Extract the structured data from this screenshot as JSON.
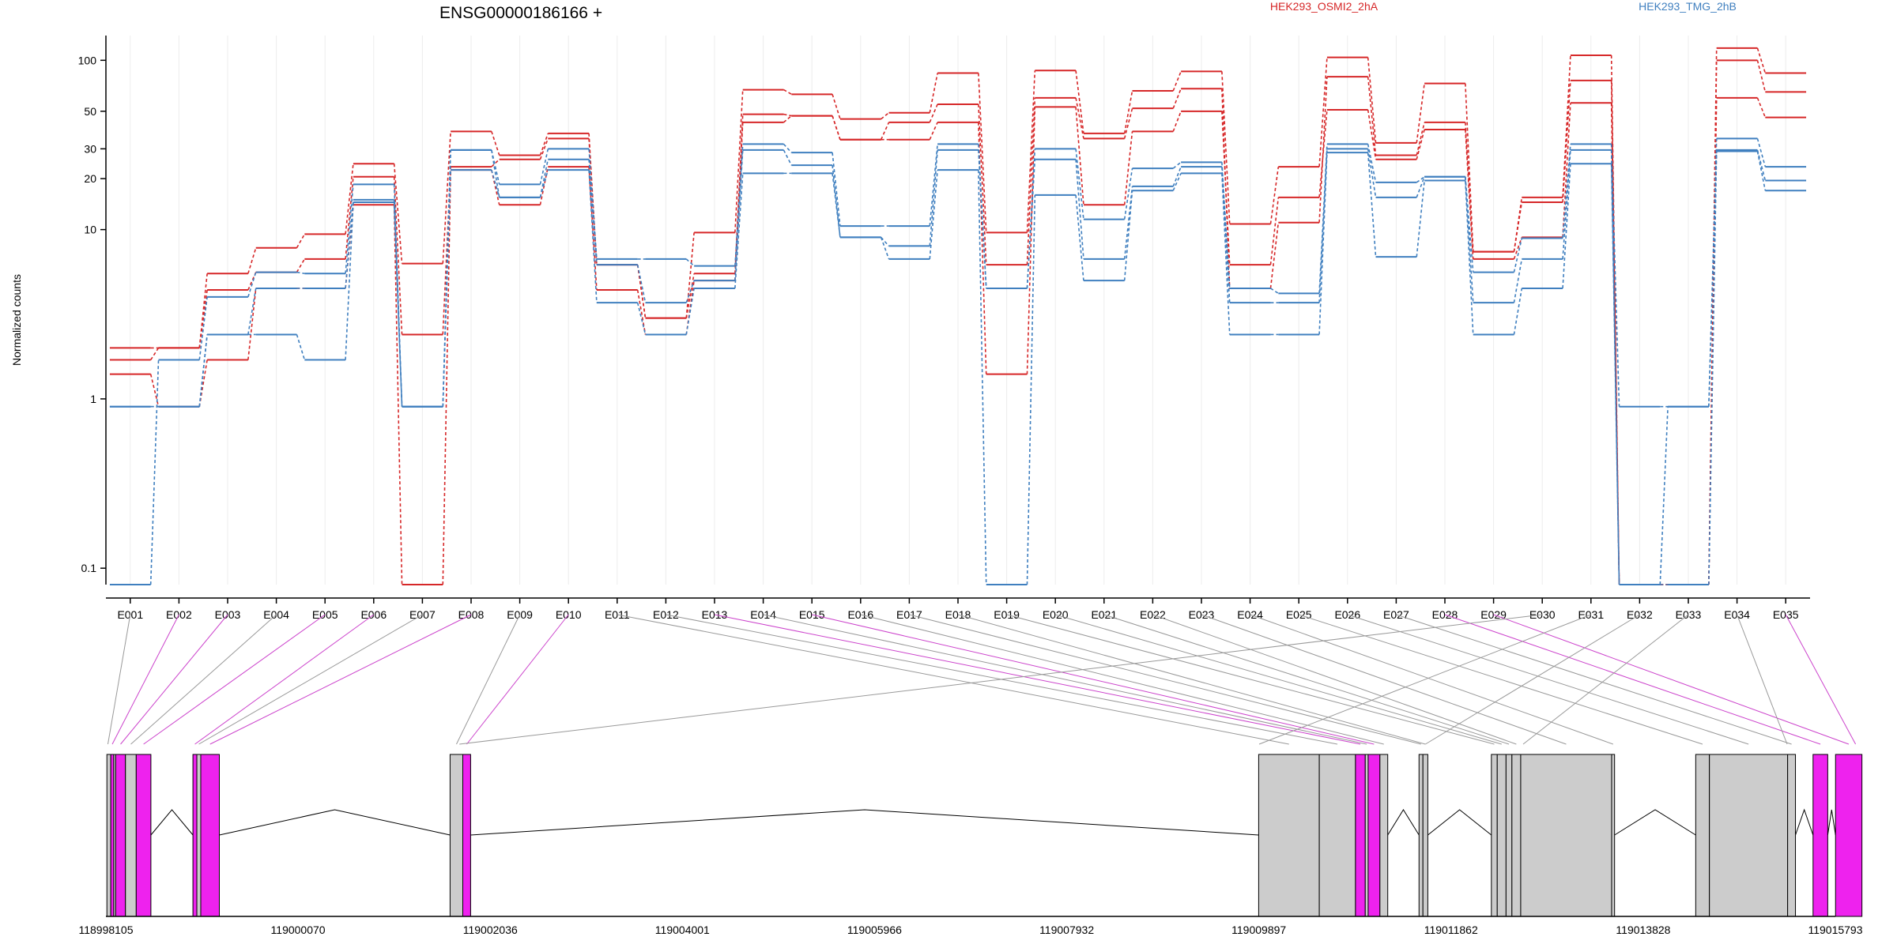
{
  "chart_data": {
    "type": "line",
    "title": "ENSG00000186166 +",
    "ylabel": "Normalized counts",
    "yscale": "log",
    "ylim": [
      0.08,
      140
    ],
    "yticks": [
      "100",
      "50",
      "30",
      "20",
      "10",
      "1",
      "0.1"
    ],
    "yticks_values": [
      100,
      50,
      30,
      20,
      10,
      1,
      0.1
    ],
    "grid": "vertical",
    "legend_position": "top-right",
    "exons": [
      "E001",
      "E002",
      "E003",
      "E004",
      "E005",
      "E006",
      "E007",
      "E008",
      "E009",
      "E010",
      "E011",
      "E012",
      "E013",
      "E014",
      "E015",
      "E016",
      "E017",
      "E018",
      "E019",
      "E020",
      "E021",
      "E022",
      "E023",
      "E024",
      "E025",
      "E026",
      "E027",
      "E028",
      "E029",
      "E030",
      "E031",
      "E032",
      "E033",
      "E034",
      "E035"
    ],
    "groups": [
      {
        "label": "HEK293_OSMI2_2hA",
        "color": "#d62728"
      },
      {
        "label": "HEK293_TMG_2hB",
        "color": "#3f7fbf"
      }
    ],
    "series": [
      {
        "group": 0,
        "values": [
          2.0,
          2.0,
          5.5,
          7.8,
          9.4,
          24.5,
          6.3,
          38.0,
          27.5,
          37.0,
          6.2,
          3.0,
          9.6,
          67.0,
          63.0,
          45.0,
          49.0,
          84.0,
          9.6,
          87.0,
          37.0,
          66.0,
          86.0,
          10.8,
          23.5,
          104.0,
          32.5,
          73.0,
          7.4,
          15.5,
          107.0,
          0.07,
          0.07,
          118.0,
          84.0
        ]
      },
      {
        "group": 0,
        "values": [
          1.7,
          2.0,
          4.4,
          5.6,
          6.7,
          20.5,
          2.4,
          23.5,
          26.0,
          34.5,
          6.2,
          3.0,
          5.5,
          48.0,
          47.0,
          34.0,
          43.0,
          55.0,
          6.2,
          60.0,
          34.5,
          52.0,
          68.0,
          4.5,
          11.0,
          80.0,
          27.5,
          43.0,
          7.4,
          14.5,
          76.0,
          0.07,
          0.07,
          100.0,
          65.0
        ]
      },
      {
        "group": 0,
        "values": [
          1.4,
          0.9,
          1.7,
          4.5,
          4.5,
          14.0,
          0.07,
          22.5,
          14.0,
          23.5,
          4.4,
          2.4,
          5.0,
          43.0,
          47.0,
          34.0,
          34.0,
          43.0,
          1.4,
          53.0,
          14.0,
          38.0,
          50.0,
          6.2,
          15.5,
          51.0,
          26.0,
          39.0,
          6.7,
          9.0,
          56.0,
          0.07,
          0.07,
          60.0,
          46.0
        ]
      },
      {
        "group": 1,
        "values": [
          0.07,
          1.7,
          4.0,
          5.6,
          5.5,
          18.5,
          0.9,
          29.5,
          18.5,
          30.0,
          6.7,
          6.7,
          6.1,
          32.0,
          28.5,
          10.5,
          10.5,
          32.0,
          4.5,
          30.0,
          11.5,
          23.0,
          25.0,
          4.5,
          4.2,
          32.0,
          19.0,
          20.5,
          5.6,
          8.9,
          32.0,
          0.9,
          0.9,
          34.5,
          23.5
        ]
      },
      {
        "group": 1,
        "values": [
          0.9,
          0.9,
          2.4,
          4.5,
          4.5,
          15.0,
          0.9,
          29.5,
          15.5,
          26.0,
          6.2,
          3.7,
          5.0,
          29.5,
          24.0,
          9.0,
          8.0,
          29.5,
          4.5,
          26.0,
          6.7,
          18.0,
          23.5,
          3.7,
          3.7,
          30.0,
          15.5,
          20.5,
          3.7,
          6.7,
          29.5,
          0.07,
          0.9,
          29.5,
          19.5
        ]
      },
      {
        "group": 1,
        "values": [
          0.9,
          0.9,
          2.4,
          2.4,
          1.7,
          14.5,
          0.9,
          22.5,
          15.5,
          22.5,
          3.7,
          2.4,
          4.5,
          21.5,
          21.5,
          9.0,
          6.7,
          22.5,
          0.07,
          16.0,
          5.0,
          17.0,
          21.5,
          2.4,
          2.4,
          28.5,
          6.9,
          19.5,
          2.4,
          4.5,
          24.5,
          0.07,
          0.07,
          29.0,
          17.0
        ]
      }
    ],
    "genomic_axis": {
      "tick_labels": [
        "118998105",
        "119000070",
        "119002036",
        "119004001",
        "119005966",
        "119007932",
        "119009897",
        "119011862",
        "119013828",
        "119015793"
      ],
      "tick_values": [
        118998105,
        119000070,
        119002036,
        119004001,
        119005966,
        119007932,
        119009897,
        119011862,
        119013828,
        119015793
      ]
    },
    "gene_model": {
      "exons": [
        {
          "start": 118998115,
          "end": 118998155,
          "highlight": false
        },
        {
          "start": 118998155,
          "end": 118998185,
          "highlight": true
        },
        {
          "start": 118998185,
          "end": 118998205,
          "highlight": false
        },
        {
          "start": 118998205,
          "end": 118998305,
          "highlight": true
        },
        {
          "start": 118998305,
          "end": 118998415,
          "highlight": false
        },
        {
          "start": 118998415,
          "end": 118998565,
          "highlight": true
        },
        {
          "start": 118998995,
          "end": 118999035,
          "highlight": true
        },
        {
          "start": 118999035,
          "end": 118999075,
          "highlight": false
        },
        {
          "start": 118999075,
          "end": 118999265,
          "highlight": true
        },
        {
          "start": 119001625,
          "end": 119001755,
          "highlight": false
        },
        {
          "start": 119001755,
          "end": 119001835,
          "highlight": true
        },
        {
          "start": 119009895,
          "end": 119010515,
          "highlight": false
        },
        {
          "start": 119010515,
          "end": 119010885,
          "highlight": false
        },
        {
          "start": 119010885,
          "end": 119010985,
          "highlight": true
        },
        {
          "start": 119010985,
          "end": 119011015,
          "highlight": false
        },
        {
          "start": 119011015,
          "end": 119011135,
          "highlight": true
        },
        {
          "start": 119011135,
          "end": 119011215,
          "highlight": false
        },
        {
          "start": 119011535,
          "end": 119011575,
          "highlight": false
        },
        {
          "start": 119011575,
          "end": 119011625,
          "highlight": false
        },
        {
          "start": 119012275,
          "end": 119012335,
          "highlight": false
        },
        {
          "start": 119012335,
          "end": 119012425,
          "highlight": false
        },
        {
          "start": 119012425,
          "end": 119012485,
          "highlight": false
        },
        {
          "start": 119012485,
          "end": 119012575,
          "highlight": false
        },
        {
          "start": 119012575,
          "end": 119013505,
          "highlight": false
        },
        {
          "start": 119013505,
          "end": 119013535,
          "highlight": false
        },
        {
          "start": 119014365,
          "end": 119014505,
          "highlight": false
        },
        {
          "start": 119014505,
          "end": 119015305,
          "highlight": false
        },
        {
          "start": 119015305,
          "end": 119015385,
          "highlight": false
        },
        {
          "start": 119015565,
          "end": 119015715,
          "highlight": true
        },
        {
          "start": 119015795,
          "end": 119016065,
          "highlight": true
        }
      ],
      "exon_map": [
        118998125,
        118998170,
        118998255,
        118998360,
        118998490,
        118999015,
        118999055,
        118999170,
        119001690,
        119001795,
        119010205,
        119010700,
        119010935,
        119011000,
        119011075,
        119011175,
        119011555,
        119011600,
        119012305,
        119012380,
        119012455,
        119012530,
        119013040,
        119013520,
        119014435,
        119014905,
        119015345,
        119015640,
        119015930,
        119001720,
        119009900,
        119011600,
        119012600,
        119015300,
        119016000
      ]
    }
  }
}
